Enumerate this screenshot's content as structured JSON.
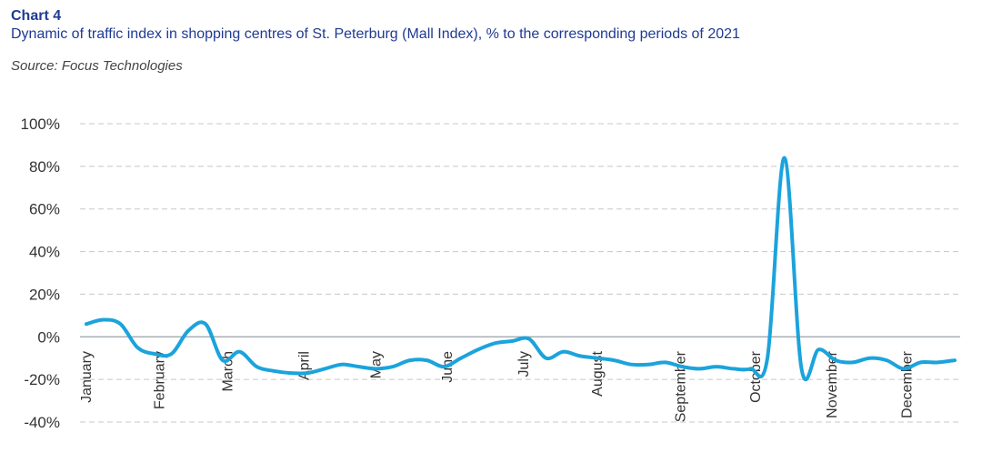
{
  "header": {
    "label": "Chart 4",
    "title": "Dynamic of traffic index in shopping centres of St. Peterburg (Mall Index), % to the corresponding periods of 2021",
    "source": "Source: Focus Technologies"
  },
  "chart_data": {
    "type": "line",
    "title": "Dynamic of traffic index in shopping centres of St. Peterburg (Mall Index), % to the corresponding periods of 2021",
    "xlabel": "",
    "ylabel": "",
    "ylim": [
      -40,
      100
    ],
    "yticks": [
      "100%",
      "80%",
      "60%",
      "40%",
      "20%",
      "0%",
      "-20%",
      "-40%"
    ],
    "ytick_values": [
      100,
      80,
      60,
      40,
      20,
      0,
      -20,
      -40
    ],
    "grid": "horizontal dashed",
    "line_color": "#1ba3dc",
    "months": [
      {
        "label": "January",
        "x": 0
      },
      {
        "label": "February",
        "x": 4.3
      },
      {
        "label": "March",
        "x": 8.3
      },
      {
        "label": "April",
        "x": 12.8
      },
      {
        "label": "May",
        "x": 17.0
      },
      {
        "label": "June",
        "x": 21.2
      },
      {
        "label": "July",
        "x": 25.7
      },
      {
        "label": "August",
        "x": 30.0
      },
      {
        "label": "September",
        "x": 34.9
      },
      {
        "label": "October",
        "x": 39.3
      },
      {
        "label": "November",
        "x": 43.8
      },
      {
        "label": "December",
        "x": 48.2
      }
    ],
    "x": [
      0,
      1,
      2,
      3,
      4,
      5,
      6,
      7,
      8,
      9,
      10,
      11,
      12,
      13,
      14,
      15,
      16,
      17,
      18,
      19,
      20,
      21,
      22,
      23,
      24,
      25,
      26,
      27,
      28,
      29,
      30,
      31,
      32,
      33,
      34,
      35,
      36,
      37,
      38,
      39,
      40,
      41,
      42,
      43,
      44,
      45,
      46,
      47,
      48,
      49,
      50,
      51
    ],
    "values": [
      6,
      8,
      6,
      -5,
      -8,
      -8,
      3,
      6,
      -11,
      -7,
      -14,
      -16,
      -17,
      -17,
      -15,
      -13,
      -14,
      -15,
      -14,
      -11,
      -11,
      -14,
      -10,
      -6,
      -3,
      -2,
      -1,
      -10,
      -7,
      -9,
      -10,
      -11,
      -13,
      -13,
      -12,
      -14,
      -15,
      -14,
      -15,
      -15,
      -10,
      84,
      -15,
      -6,
      -11,
      -12,
      -10,
      -11,
      -15,
      -12,
      -12,
      -11
    ]
  }
}
